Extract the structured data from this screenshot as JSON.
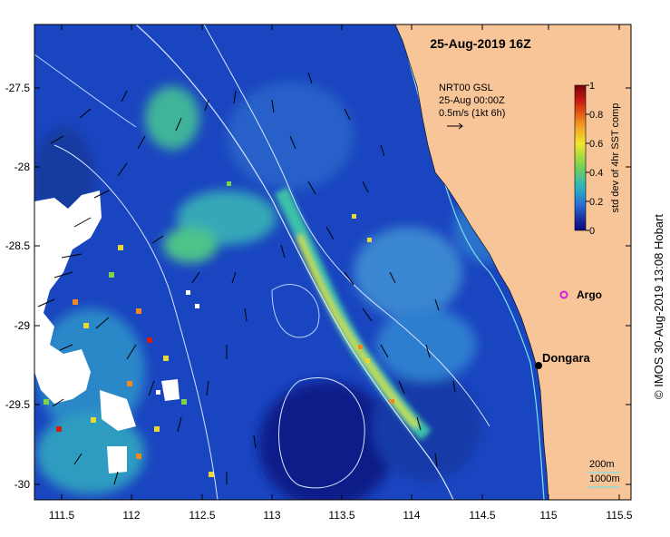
{
  "title": "25-Aug-2019 16Z",
  "current_legend": {
    "product": "NRT00 GSL",
    "time": "25-Aug 00:00Z",
    "scale": "0.5m/s (1kt 6h)"
  },
  "colorbar": {
    "label": "std dev of 4hr SST comp",
    "ticks": [
      "1",
      "0.8",
      "0.6",
      "0.4",
      "0.2",
      "0"
    ],
    "colors": [
      "#7a0010",
      "#d02010",
      "#f08a20",
      "#f4e430",
      "#7ed34a",
      "#2bb4c0",
      "#2a6fd6",
      "#1a2ea0",
      "#0a0a80"
    ]
  },
  "labels": {
    "argo": "Argo",
    "town": "Dongara",
    "isobath_shallow": "200m",
    "isobath_deep": "1000m"
  },
  "axes": {
    "x_ticks": [
      "111.5",
      "112",
      "112.5",
      "113",
      "113.5",
      "114",
      "114.5",
      "115",
      "115.5"
    ],
    "y_ticks": [
      "-27.5",
      "-28",
      "-28.5",
      "-29",
      "-29.5",
      "-30"
    ]
  },
  "colors": {
    "land": "#f8c598",
    "ocean_deep": "#0c2a9a",
    "argo_marker": "#d01ee0",
    "isobath_200": "#7fe0e8",
    "isobath_1000": "#d9e6ff"
  },
  "credit": "© IMOS 30-Aug-2019 13:08 Hobart"
}
